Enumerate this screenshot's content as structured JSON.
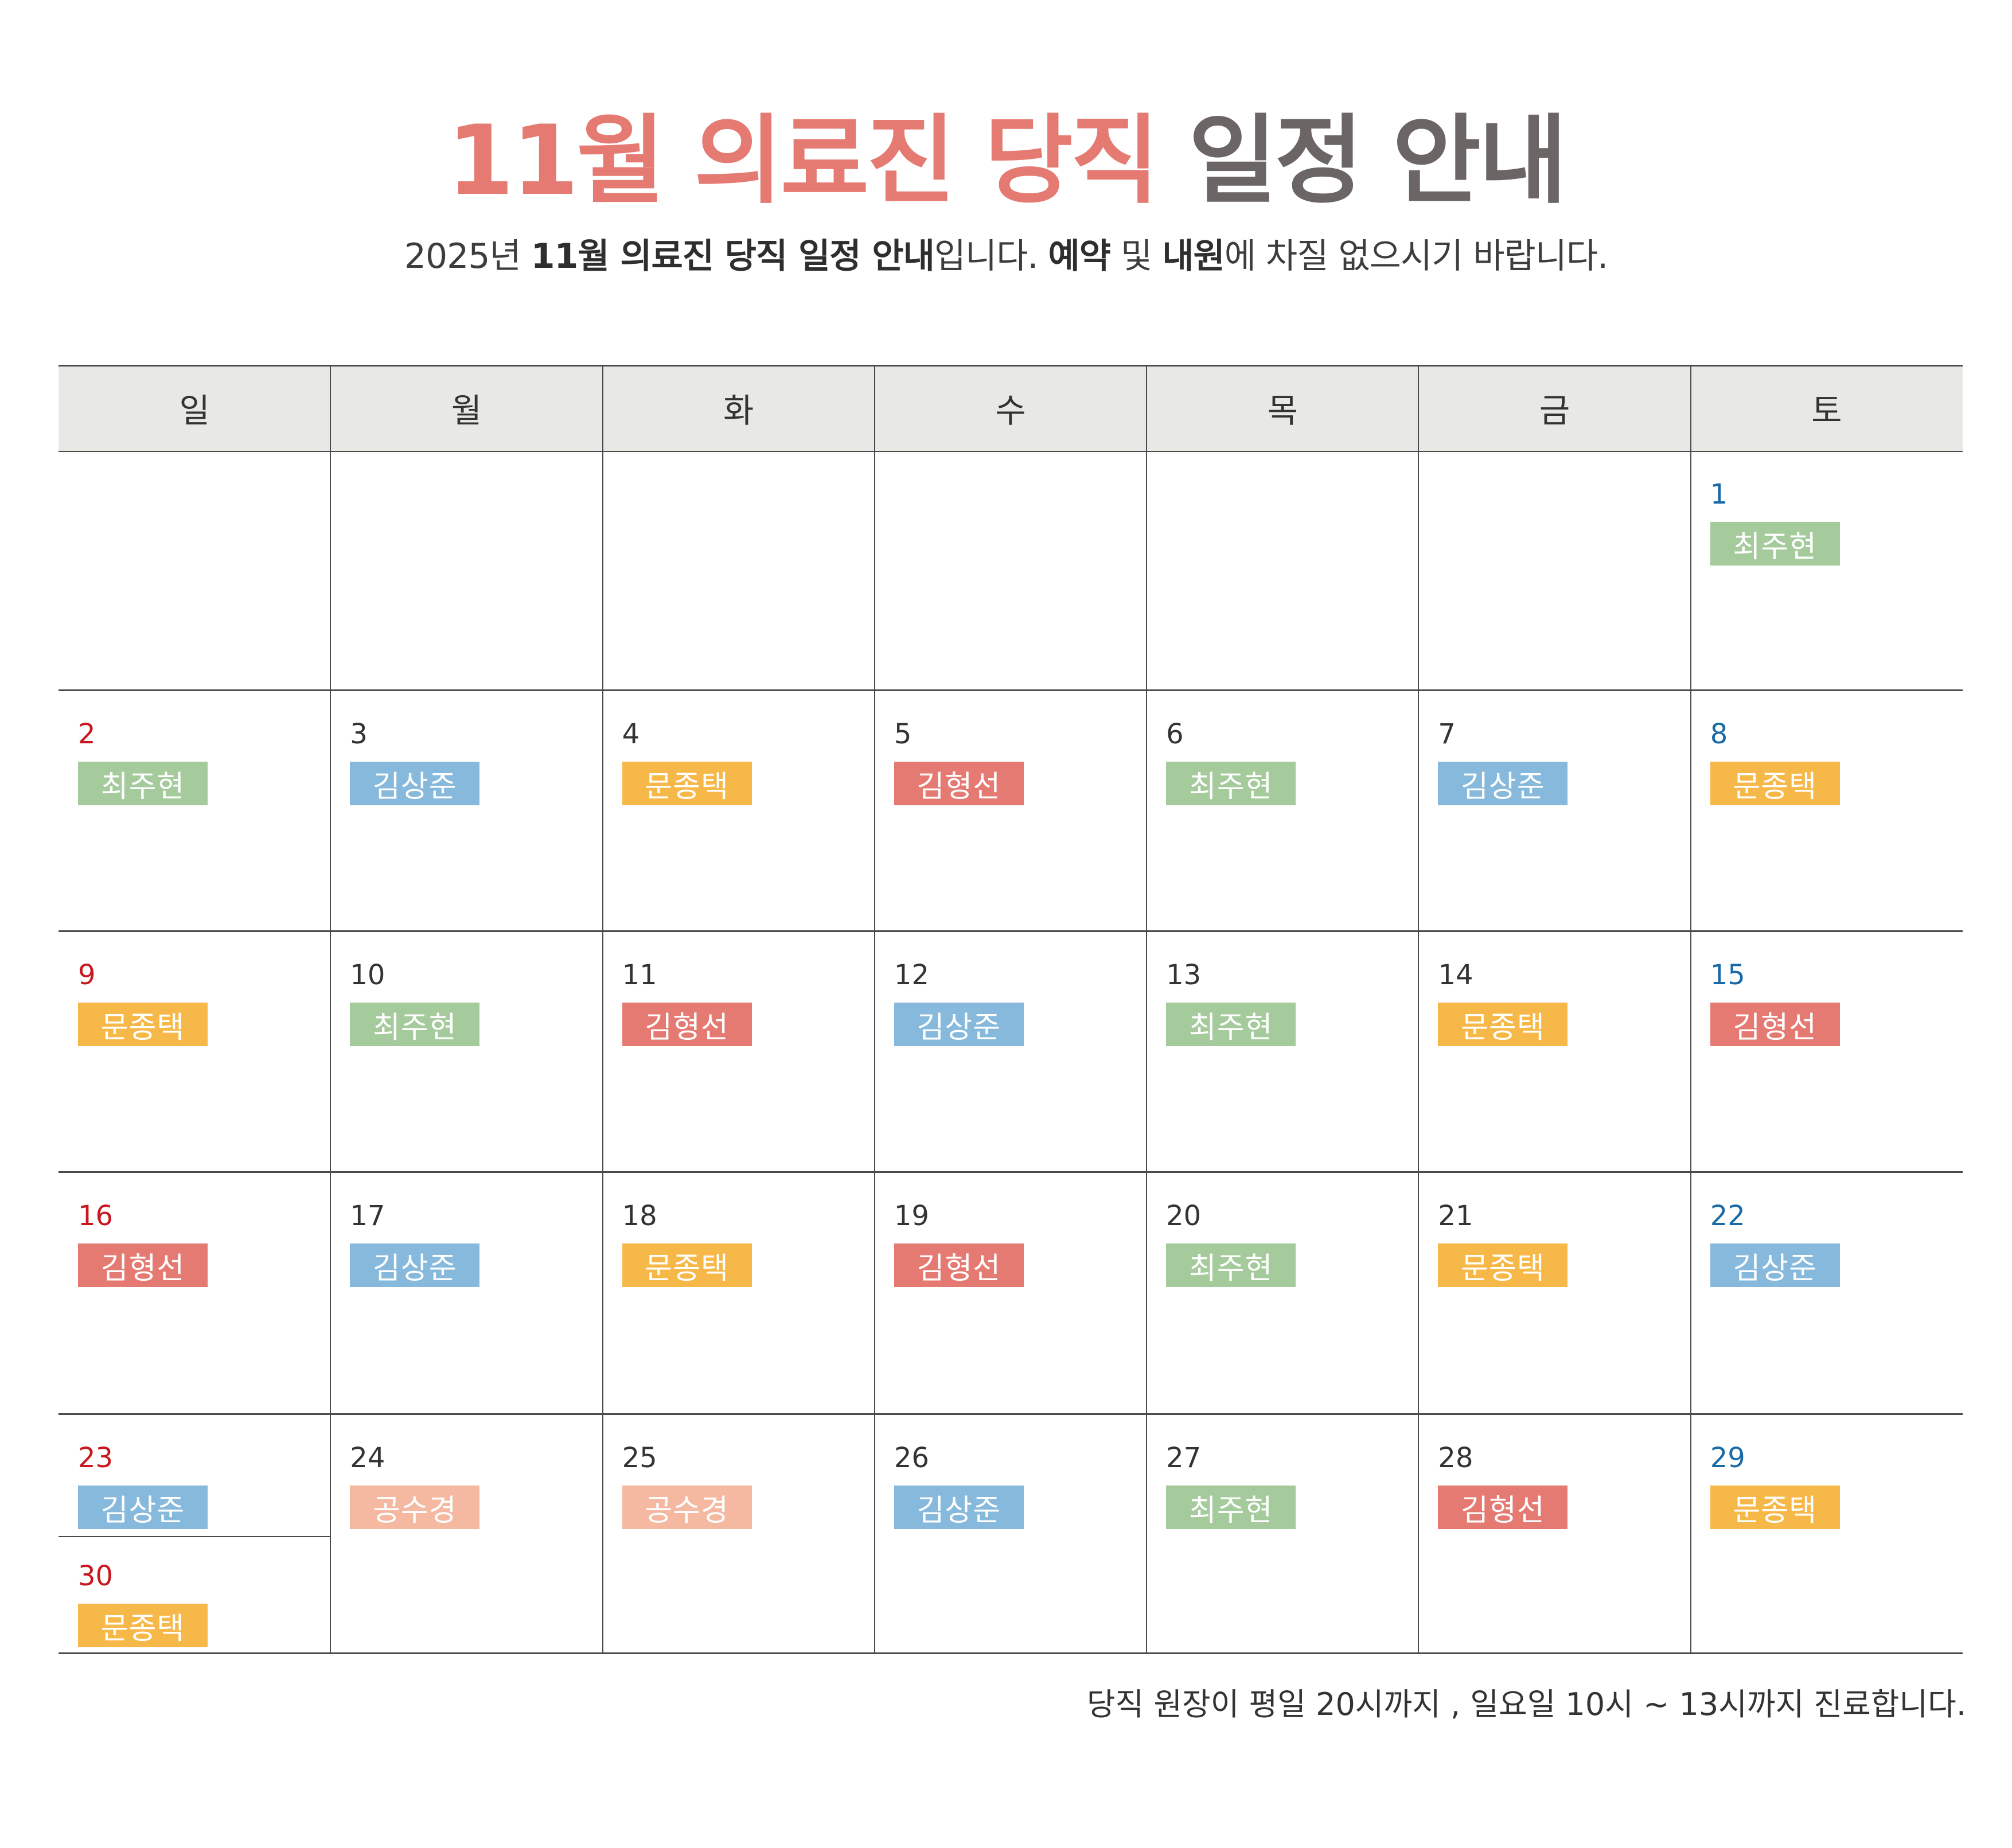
{
  "header": {
    "title_accent": "11월 의료진 당직",
    "title_rest": "일정 안내",
    "subtitle": {
      "p1": "2025년 ",
      "b1": "11월 의료진 당직 일정 안내",
      "p2": "입니다. ",
      "b2": "예약",
      "p3": " 및 ",
      "b3": "내원",
      "p4": "에 차질 없으시기 바랍니다."
    }
  },
  "colors": {
    "title_accent": "#e57a72",
    "title_rest": "#6b6565",
    "header_bg": "#e8e8e4",
    "sunday_number": "#c8171e",
    "saturday_number": "#1a6aa8",
    "doctors": {
      "최주현": "#a5cb9c",
      "김상준": "#86b9dc",
      "문종택": "#f7b84a",
      "김형선": "#e57a72",
      "공수경": "#f4b9a0"
    }
  },
  "calendar": {
    "weekdays": [
      "일",
      "월",
      "화",
      "수",
      "목",
      "금",
      "토"
    ],
    "weeks": [
      [
        null,
        null,
        null,
        null,
        null,
        null,
        {
          "day": "1",
          "doctor": "최주현"
        }
      ],
      [
        {
          "day": "2",
          "doctor": "최주현"
        },
        {
          "day": "3",
          "doctor": "김상준"
        },
        {
          "day": "4",
          "doctor": "문종택"
        },
        {
          "day": "5",
          "doctor": "김형선"
        },
        {
          "day": "6",
          "doctor": "최주현"
        },
        {
          "day": "7",
          "doctor": "김상준"
        },
        {
          "day": "8",
          "doctor": "문종택"
        }
      ],
      [
        {
          "day": "9",
          "doctor": "문종택"
        },
        {
          "day": "10",
          "doctor": "최주현"
        },
        {
          "day": "11",
          "doctor": "김형선"
        },
        {
          "day": "12",
          "doctor": "김상준"
        },
        {
          "day": "13",
          "doctor": "최주현"
        },
        {
          "day": "14",
          "doctor": "문종택"
        },
        {
          "day": "15",
          "doctor": "김형선"
        }
      ],
      [
        {
          "day": "16",
          "doctor": "김형선"
        },
        {
          "day": "17",
          "doctor": "김상준"
        },
        {
          "day": "18",
          "doctor": "문종택"
        },
        {
          "day": "19",
          "doctor": "김형선"
        },
        {
          "day": "20",
          "doctor": "최주현"
        },
        {
          "day": "21",
          "doctor": "문종택"
        },
        {
          "day": "22",
          "doctor": "김상준"
        }
      ],
      [
        {
          "day": "23",
          "doctor": "김상준",
          "extra": {
            "day": "30",
            "doctor": "문종택"
          }
        },
        {
          "day": "24",
          "doctor": "공수경"
        },
        {
          "day": "25",
          "doctor": "공수경"
        },
        {
          "day": "26",
          "doctor": "김상준"
        },
        {
          "day": "27",
          "doctor": "최주현"
        },
        {
          "day": "28",
          "doctor": "김형선"
        },
        {
          "day": "29",
          "doctor": "문종택"
        }
      ]
    ]
  },
  "footer": {
    "note": "당직 원장이 평일 20시까지 , 일요일 10시 ~ 13시까지 진료합니다."
  }
}
